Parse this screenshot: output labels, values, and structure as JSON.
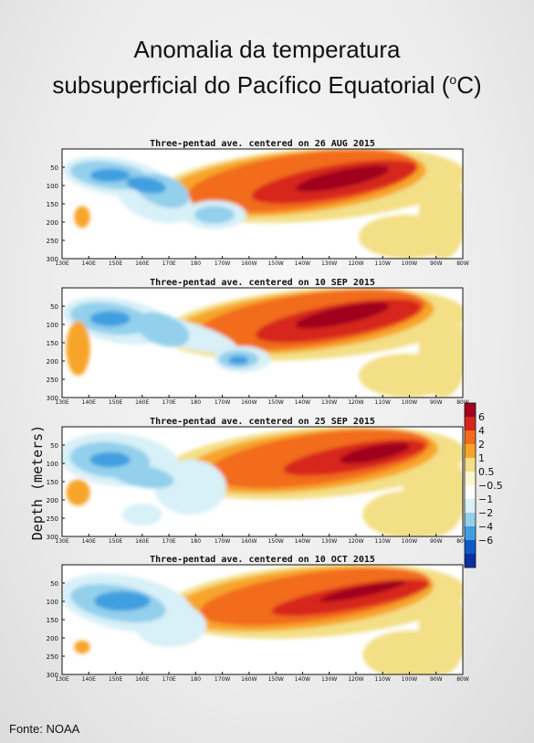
{
  "title_line1": "Anomalia da temperatura",
  "title_line2": "subsuperficial do Pacífico Equatorial (",
  "title_sup": "o",
  "title_close": "C)",
  "source": "Fonte: NOAA",
  "chart_data": {
    "type": "heatmap",
    "ylabel": "Depth (meters)",
    "y_ticks": [
      50,
      100,
      150,
      200,
      250,
      300
    ],
    "ylim": [
      300,
      0
    ],
    "x_ticks": [
      "130E",
      "140E",
      "150E",
      "160E",
      "170E",
      "180",
      "170W",
      "160W",
      "150W",
      "140W",
      "130W",
      "120W",
      "110W",
      "100W",
      "90W",
      "80W"
    ],
    "colorbar": {
      "levels": [
        "6",
        "4",
        "2",
        "1",
        "0.5",
        "−0.5",
        "−1",
        "−2",
        "−4",
        "−6"
      ],
      "colors": [
        "#a0001c",
        "#d7261e",
        "#f26c1b",
        "#f7a529",
        "#f3df86",
        "#fbf6cc",
        "#ffffff",
        "#d8f0f7",
        "#93d0ec",
        "#3f9fe0",
        "#0f58c8",
        "#0a2fa0"
      ]
    },
    "panels": [
      {
        "title": "Three-pentad ave. centered on 26 AUG 2015"
      },
      {
        "title": "Three-pentad ave. centered on 10 SEP 2015"
      },
      {
        "title": "Three-pentad ave. centered on 25 SEP 2015"
      },
      {
        "title": "Three-pentad ave. centered on 10 OCT 2015"
      }
    ]
  }
}
